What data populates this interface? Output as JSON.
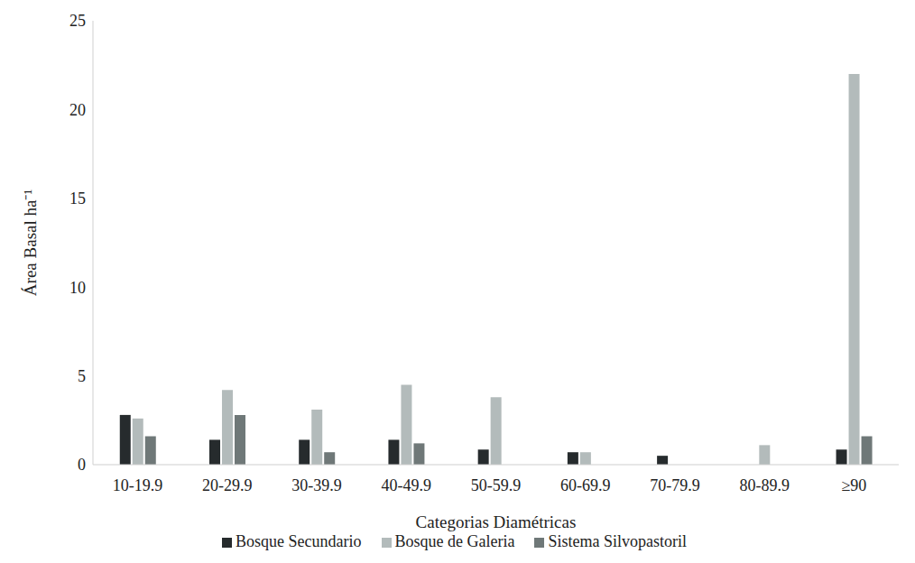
{
  "chart_data": {
    "type": "bar",
    "x_label": "Categorias Diamétricas",
    "y_label": "Área Basal ha⁻¹",
    "categories": [
      "10-19.9",
      "20-29.9",
      "30-39.9",
      "40-49.9",
      "50-59.9",
      "60-69.9",
      "70-79.9",
      "80-89.9",
      "≥90"
    ],
    "series": [
      {
        "name": "Bosque Secundario",
        "color": "#262b2d",
        "values": [
          2.8,
          1.4,
          1.4,
          1.4,
          0.85,
          0.7,
          0.5,
          0,
          0.85
        ]
      },
      {
        "name": "Bosque de Galeria",
        "color": "#b3bbbb",
        "values": [
          2.6,
          4.2,
          3.1,
          4.5,
          3.8,
          0.7,
          0,
          1.1,
          22.0
        ]
      },
      {
        "name": "Sistema Silvopastoril",
        "color": "#6f7878",
        "values": [
          1.6,
          2.8,
          0.7,
          1.2,
          0,
          0,
          0,
          0,
          1.6
        ]
      }
    ],
    "ylim": [
      0,
      25
    ],
    "yticks": [
      0,
      5,
      10,
      15,
      20,
      25
    ],
    "grid": false,
    "legend": "bottom"
  }
}
